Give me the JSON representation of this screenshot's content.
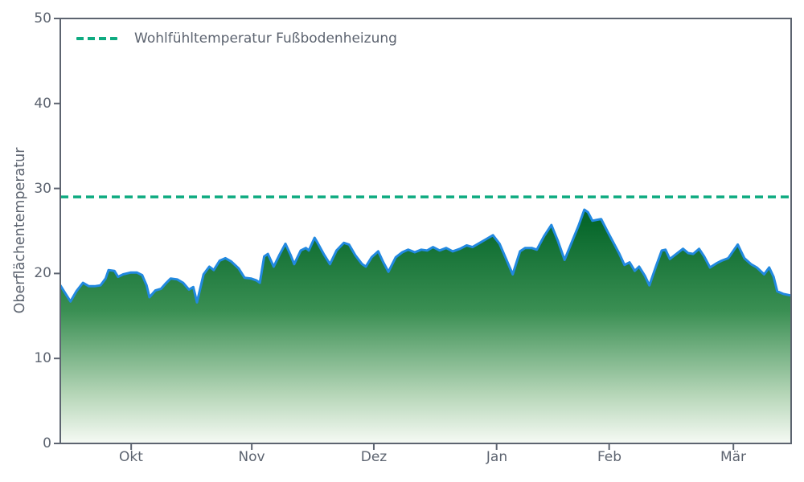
{
  "chart_data": {
    "type": "area",
    "title": "",
    "xlabel": "",
    "ylabel": "Oberflächentemperatur",
    "ylim": [
      0,
      50
    ],
    "yticks": [
      0,
      10,
      20,
      30,
      40,
      50
    ],
    "ytick_labels": [
      "0",
      "10",
      "20",
      "30",
      "40",
      "50"
    ],
    "xtick_labels": [
      "Okt",
      "Nov",
      "Dez",
      "Jan",
      "Feb",
      "Mär"
    ],
    "xtick_positions": [
      0.097,
      0.262,
      0.429,
      0.597,
      0.751,
      0.921
    ],
    "grid": false,
    "legend_position": "upper left",
    "legend": [
      {
        "label": "Wohlfühltemperatur Fußbodenheizung",
        "style": "dashed",
        "color": "#0fab81"
      }
    ],
    "comfort_line": {
      "value": 29,
      "label": "Wohlfühltemperatur Fußbodenheizung",
      "color": "#0fab81"
    },
    "series": [
      {
        "name": "Oberflächentemperatur",
        "line_color": "#2289e0",
        "fill_gradient_top": "#07672b",
        "fill_gradient_mid": "#3a8f53",
        "fill_gradient_light": "#b6d6b8",
        "fill_gradient_bottom": "#f6faf4",
        "points": [
          [
            0.0,
            18.6
          ],
          [
            0.008,
            17.5
          ],
          [
            0.014,
            16.7
          ],
          [
            0.022,
            17.9
          ],
          [
            0.031,
            18.9
          ],
          [
            0.039,
            18.5
          ],
          [
            0.047,
            18.5
          ],
          [
            0.055,
            18.6
          ],
          [
            0.062,
            19.4
          ],
          [
            0.066,
            20.4
          ],
          [
            0.074,
            20.3
          ],
          [
            0.079,
            19.6
          ],
          [
            0.086,
            19.9
          ],
          [
            0.096,
            20.1
          ],
          [
            0.105,
            20.1
          ],
          [
            0.112,
            19.8
          ],
          [
            0.118,
            18.6
          ],
          [
            0.122,
            17.2
          ],
          [
            0.13,
            18.0
          ],
          [
            0.138,
            18.2
          ],
          [
            0.144,
            18.8
          ],
          [
            0.151,
            19.4
          ],
          [
            0.16,
            19.3
          ],
          [
            0.168,
            18.9
          ],
          [
            0.176,
            18.1
          ],
          [
            0.182,
            18.4
          ],
          [
            0.187,
            16.6
          ],
          [
            0.196,
            19.9
          ],
          [
            0.204,
            20.8
          ],
          [
            0.21,
            20.4
          ],
          [
            0.218,
            21.5
          ],
          [
            0.226,
            21.8
          ],
          [
            0.234,
            21.4
          ],
          [
            0.244,
            20.6
          ],
          [
            0.252,
            19.5
          ],
          [
            0.261,
            19.4
          ],
          [
            0.268,
            19.2
          ],
          [
            0.273,
            18.9
          ],
          [
            0.279,
            22.0
          ],
          [
            0.284,
            22.3
          ],
          [
            0.292,
            20.8
          ],
          [
            0.3,
            22.2
          ],
          [
            0.308,
            23.5
          ],
          [
            0.315,
            22.2
          ],
          [
            0.32,
            21.1
          ],
          [
            0.329,
            22.7
          ],
          [
            0.336,
            23.0
          ],
          [
            0.34,
            22.7
          ],
          [
            0.348,
            24.2
          ],
          [
            0.352,
            23.6
          ],
          [
            0.361,
            22.2
          ],
          [
            0.369,
            21.1
          ],
          [
            0.378,
            22.7
          ],
          [
            0.388,
            23.6
          ],
          [
            0.395,
            23.4
          ],
          [
            0.404,
            22.1
          ],
          [
            0.413,
            21.1
          ],
          [
            0.418,
            20.8
          ],
          [
            0.426,
            21.9
          ],
          [
            0.435,
            22.6
          ],
          [
            0.442,
            21.3
          ],
          [
            0.449,
            20.2
          ],
          [
            0.459,
            21.9
          ],
          [
            0.468,
            22.5
          ],
          [
            0.476,
            22.8
          ],
          [
            0.485,
            22.5
          ],
          [
            0.494,
            22.8
          ],
          [
            0.502,
            22.7
          ],
          [
            0.51,
            23.1
          ],
          [
            0.519,
            22.7
          ],
          [
            0.528,
            23.0
          ],
          [
            0.537,
            22.6
          ],
          [
            0.547,
            22.9
          ],
          [
            0.556,
            23.3
          ],
          [
            0.564,
            23.1
          ],
          [
            0.574,
            23.6
          ],
          [
            0.584,
            24.1
          ],
          [
            0.592,
            24.5
          ],
          [
            0.601,
            23.5
          ],
          [
            0.609,
            21.9
          ],
          [
            0.619,
            19.9
          ],
          [
            0.629,
            22.6
          ],
          [
            0.636,
            23.0
          ],
          [
            0.645,
            23.0
          ],
          [
            0.652,
            22.8
          ],
          [
            0.662,
            24.4
          ],
          [
            0.672,
            25.7
          ],
          [
            0.681,
            23.8
          ],
          [
            0.69,
            21.6
          ],
          [
            0.699,
            23.5
          ],
          [
            0.709,
            25.6
          ],
          [
            0.717,
            27.5
          ],
          [
            0.722,
            27.2
          ],
          [
            0.728,
            26.2
          ],
          [
            0.734,
            26.3
          ],
          [
            0.74,
            26.4
          ],
          [
            0.749,
            24.9
          ],
          [
            0.757,
            23.6
          ],
          [
            0.765,
            22.3
          ],
          [
            0.772,
            21.0
          ],
          [
            0.779,
            21.3
          ],
          [
            0.786,
            20.3
          ],
          [
            0.792,
            20.8
          ],
          [
            0.8,
            19.7
          ],
          [
            0.806,
            18.6
          ],
          [
            0.815,
            20.8
          ],
          [
            0.823,
            22.7
          ],
          [
            0.828,
            22.8
          ],
          [
            0.834,
            21.7
          ],
          [
            0.843,
            22.3
          ],
          [
            0.852,
            22.9
          ],
          [
            0.859,
            22.4
          ],
          [
            0.866,
            22.3
          ],
          [
            0.874,
            22.9
          ],
          [
            0.881,
            22.0
          ],
          [
            0.889,
            20.7
          ],
          [
            0.898,
            21.2
          ],
          [
            0.905,
            21.5
          ],
          [
            0.914,
            21.8
          ],
          [
            0.922,
            22.8
          ],
          [
            0.927,
            23.4
          ],
          [
            0.936,
            21.8
          ],
          [
            0.945,
            21.1
          ],
          [
            0.953,
            20.7
          ],
          [
            0.963,
            19.9
          ],
          [
            0.97,
            20.7
          ],
          [
            0.976,
            19.6
          ],
          [
            0.981,
            17.9
          ],
          [
            0.989,
            17.6
          ],
          [
            1.0,
            17.4
          ]
        ]
      }
    ],
    "axis_color": "#5d6470"
  }
}
